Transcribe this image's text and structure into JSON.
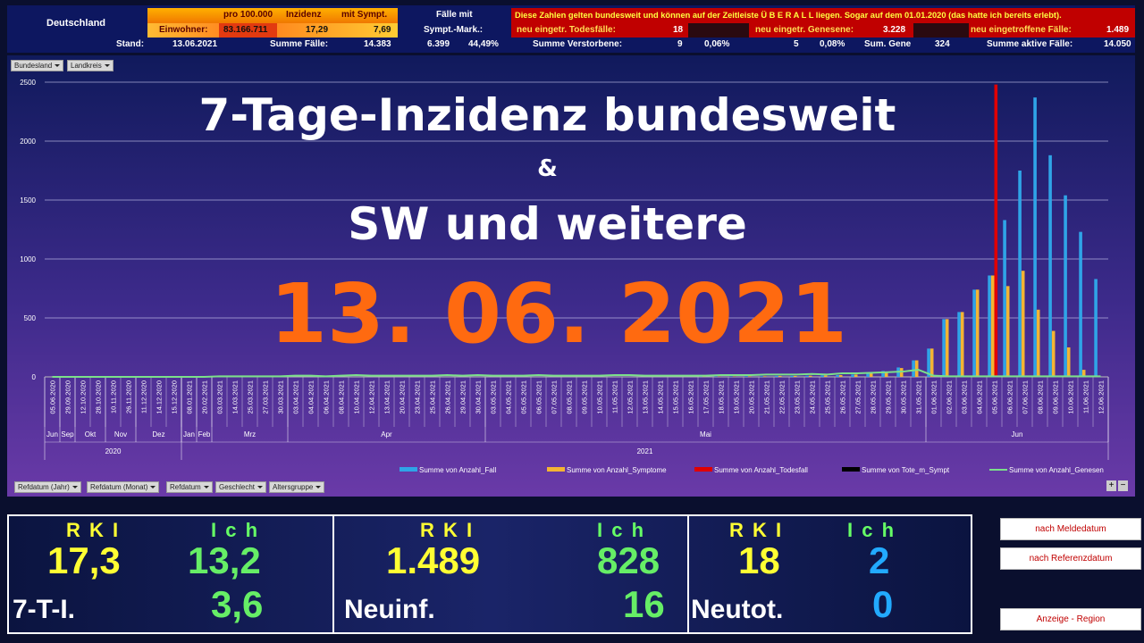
{
  "header": {
    "region": "Deutschland",
    "col_pro": "pro 100.000",
    "col_inzidenz": "Inzidenz",
    "col_sympt": "mit Sympt.",
    "einwohner_label": "Einwohner:",
    "einwohner": "83.166.711",
    "inzidenz": "17,29",
    "inzidenz_sympt": "7,69",
    "faelle_mit": "Fälle mit",
    "sympt_mark": "Sympt.-Mark.:",
    "banner": "Diese Zahlen gelten bundesweit und können auf der Zeitleiste Ü B E R A L L liegen. Sogar auf dem 01.01.2020 (das hatte ich bereits erlebt).",
    "todesfaelle_label": "neu eingetr. Todesfälle:",
    "todesfaelle": "18",
    "genesene_label": "neu eingetr. Genesene:",
    "genesene": "3.228",
    "faelle_neu_label": "neu eingetroffene Fälle:",
    "faelle_neu": "1.489",
    "stand_label": "Stand:",
    "stand": "13.06.2021",
    "summe_faelle_label": "Summe Fälle:",
    "summe_faelle": "14.383",
    "sympt_faelle": "6.399",
    "sympt_anteil": "44,49%",
    "verstorbene_label": "Summe Verstorbene:",
    "verstorbene": "9",
    "verstorbene_anteil": "0,06%",
    "verstorbene_sympt": "5",
    "verstorbene_sympt_anteil": "0,08%",
    "genesene_sum_label": "Sum. Gene",
    "genesene_sum": "324",
    "aktive_label": "Summe aktive Fälle:",
    "aktive": "14.050"
  },
  "filters": {
    "top": [
      "Bundesland",
      "Landkreis"
    ],
    "bottom": [
      "Refdatum (Jahr)",
      "Refdatum (Monat)",
      "Refdatum",
      "Geschlecht",
      "Altersgruppe"
    ],
    "zoom": [
      "+",
      "−"
    ]
  },
  "overlay": {
    "title": "7-Tage-Inzidenz bundesweit",
    "amp": "&",
    "subtitle": "SW und weitere",
    "date": "13. 06. 2021"
  },
  "chart_data": {
    "type": "bar",
    "categories": [
      "05.06.2020",
      "29.09.2020",
      "12.10.2020",
      "28.10.2020",
      "10.11.2020",
      "26.11.2020",
      "11.12.2020",
      "14.12.2020",
      "15.12.2020",
      "08.01.2021",
      "20.02.2021",
      "03.03.2021",
      "14.03.2021",
      "25.03.2021",
      "27.03.2021",
      "30.03.2021",
      "03.04.2021",
      "04.04.2021",
      "06.04.2021",
      "08.04.2021",
      "10.04.2021",
      "12.04.2021",
      "13.04.2021",
      "20.04.2021",
      "23.04.2021",
      "25.04.2021",
      "26.04.2021",
      "29.04.2021",
      "30.04.2021",
      "03.05.2021",
      "04.05.2021",
      "05.05.2021",
      "06.05.2021",
      "07.05.2021",
      "08.05.2021",
      "09.05.2021",
      "10.05.2021",
      "11.05.2021",
      "12.05.2021",
      "13.05.2021",
      "14.05.2021",
      "15.05.2021",
      "16.05.2021",
      "17.05.2021",
      "18.05.2021",
      "19.05.2021",
      "20.05.2021",
      "21.05.2021",
      "22.05.2021",
      "23.05.2021",
      "24.05.2021",
      "25.05.2021",
      "26.05.2021",
      "27.05.2021",
      "28.05.2021",
      "29.05.2021",
      "30.05.2021",
      "31.05.2021",
      "01.06.2021",
      "02.06.2021",
      "03.06.2021",
      "04.06.2021",
      "05.06.2021",
      "06.06.2021",
      "07.06.2021",
      "08.06.2021",
      "09.06.2021",
      "10.06.2021",
      "11.06.2021",
      "12.06.2021"
    ],
    "month_labels": [
      "Jun",
      "Sep",
      "Okt",
      "Nov",
      "Dez",
      "Jan",
      "Feb",
      "Mrz",
      "Apr",
      "Mai",
      "Jun"
    ],
    "year_labels": [
      "2020",
      "2021"
    ],
    "series": [
      {
        "name": "Summe von Anzahl_Fall",
        "color": "#2fa4e7",
        "values": [
          0,
          0,
          0,
          0,
          0,
          0,
          0,
          0,
          0,
          0,
          0,
          0,
          0,
          0,
          0,
          0,
          0,
          0,
          0,
          0,
          0,
          0,
          0,
          0,
          0,
          0,
          0,
          0,
          0,
          0,
          0,
          0,
          0,
          0,
          0,
          0,
          0,
          0,
          0,
          0,
          0,
          0,
          0,
          2,
          3,
          3,
          5,
          5,
          8,
          8,
          10,
          12,
          15,
          20,
          30,
          50,
          80,
          140,
          240,
          490,
          550,
          740,
          860,
          1330,
          1750,
          2370,
          1880,
          1540,
          1230,
          830
        ]
      },
      {
        "name": "Summe von Anzahl_Symptome",
        "color": "#f4b433",
        "values": [
          0,
          0,
          0,
          0,
          0,
          0,
          0,
          0,
          0,
          0,
          0,
          0,
          0,
          0,
          0,
          0,
          0,
          0,
          0,
          0,
          0,
          0,
          0,
          0,
          0,
          0,
          0,
          0,
          0,
          0,
          0,
          0,
          0,
          0,
          0,
          0,
          0,
          0,
          0,
          0,
          0,
          0,
          0,
          2,
          3,
          3,
          5,
          5,
          8,
          8,
          10,
          12,
          15,
          20,
          30,
          45,
          75,
          140,
          240,
          490,
          550,
          740,
          860,
          770,
          900,
          570,
          390,
          250,
          60,
          10
        ]
      },
      {
        "name": "Summe von Anzahl_Todesfall",
        "color": "#e00000",
        "values": [
          0,
          0,
          0,
          0,
          0,
          0,
          0,
          0,
          0,
          0,
          0,
          0,
          0,
          0,
          0,
          0,
          0,
          0,
          0,
          0,
          0,
          0,
          0,
          0,
          0,
          0,
          0,
          0,
          0,
          0,
          0,
          0,
          0,
          0,
          0,
          0,
          0,
          0,
          0,
          0,
          0,
          0,
          0,
          0,
          0,
          0,
          0,
          0,
          0,
          0,
          0,
          0,
          0,
          0,
          0,
          0,
          0,
          0,
          0,
          0,
          0,
          0,
          2480,
          0,
          0,
          0,
          0,
          0,
          0,
          0
        ]
      },
      {
        "name": "Summe von Tote_m_Sympt",
        "color": "#000000",
        "values": [
          0,
          0,
          0,
          0,
          0,
          0,
          0,
          0,
          0,
          0,
          0,
          0,
          0,
          0,
          0,
          0,
          0,
          0,
          0,
          0,
          0,
          0,
          0,
          0,
          0,
          0,
          0,
          0,
          0,
          0,
          0,
          0,
          0,
          0,
          0,
          0,
          0,
          0,
          0,
          0,
          0,
          0,
          0,
          0,
          0,
          0,
          0,
          0,
          0,
          0,
          0,
          0,
          0,
          0,
          0,
          0,
          0,
          0,
          0,
          0,
          0,
          0,
          0,
          0,
          0,
          0,
          0,
          0,
          0,
          0
        ]
      },
      {
        "name": "Summe von Anzahl_Genesen",
        "color": "#7be08a",
        "type": "line",
        "values": [
          0,
          0,
          0,
          0,
          0,
          0,
          0,
          0,
          0,
          0,
          0,
          5,
          5,
          5,
          5,
          5,
          10,
          10,
          5,
          10,
          15,
          10,
          10,
          10,
          10,
          10,
          15,
          10,
          15,
          10,
          10,
          10,
          15,
          10,
          10,
          10,
          10,
          15,
          15,
          10,
          10,
          10,
          10,
          10,
          15,
          15,
          15,
          20,
          20,
          20,
          25,
          20,
          30,
          30,
          35,
          40,
          45,
          60,
          10,
          5,
          5,
          5,
          5,
          5,
          5,
          5,
          5,
          5,
          5,
          5
        ]
      }
    ],
    "ylim": [
      0,
      2500
    ],
    "yticks": [
      0,
      500,
      1000,
      1500,
      2000,
      2500
    ],
    "grid": true,
    "legend": "bottom"
  },
  "panels": [
    {
      "rki_label": "R K I",
      "ich_label": "I c h",
      "rki": "17,3",
      "ich": "13,2",
      "label": "7-T-I.",
      "ich2": "3,6"
    },
    {
      "rki_label": "R K I",
      "ich_label": "I c h",
      "rki": "1.489",
      "ich": "828",
      "label": "Neuinf.",
      "ich2": "16"
    },
    {
      "rki_label": "R K I",
      "ich_label": "I c h",
      "rki": "18",
      "ich": "2",
      "label": "Neutot.",
      "ich2": "0"
    }
  ],
  "buttons": [
    "nach Meldedatum",
    "nach Referenzdatum",
    "Anzeige - Region"
  ]
}
